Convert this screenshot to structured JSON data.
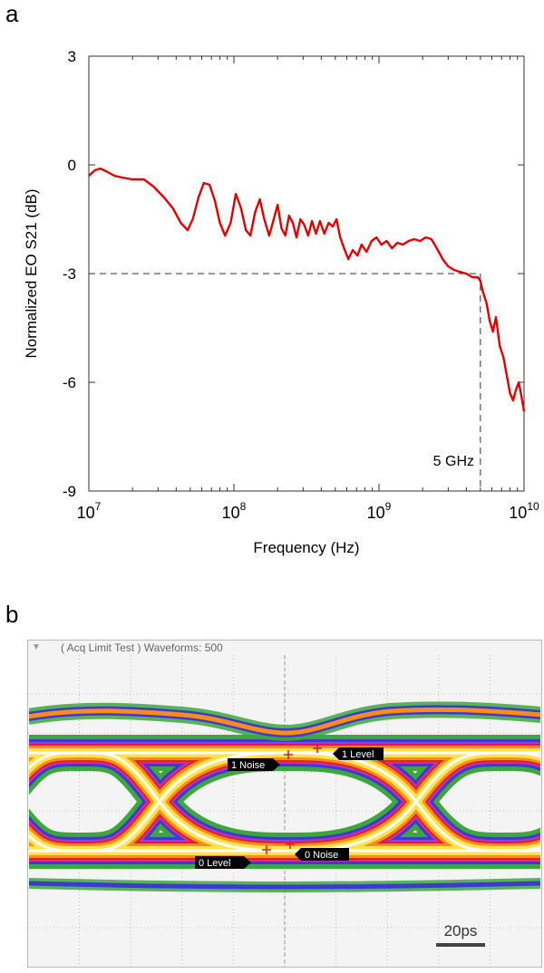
{
  "panel_a_label": "a",
  "panel_b_label": "b",
  "chart_data": {
    "type": "line",
    "title": "",
    "xlabel": "Frequency (Hz)",
    "ylabel": "Normalized EO S21 (dB)",
    "xscale": "log",
    "xlim": [
      10000000,
      10000000000
    ],
    "ylim": [
      -9,
      3
    ],
    "x_ticks": [
      {
        "base": "10",
        "exp": "7"
      },
      {
        "base": "10",
        "exp": "8"
      },
      {
        "base": "10",
        "exp": "9"
      },
      {
        "base": "10",
        "exp": "10"
      }
    ],
    "y_ticks": [
      "3",
      "0",
      "-3",
      "-6",
      "-9"
    ],
    "y_tick_values": [
      3,
      0,
      -3,
      -6,
      -9
    ],
    "grid": false,
    "line_color": "#e00000",
    "reference_lines": {
      "y": -3,
      "x": 5000000000
    },
    "annotation": "5 GHz",
    "series": [
      {
        "x": [
          10000000,
          11000000,
          12000000,
          13500000,
          15000000,
          17000000,
          20000000,
          24000000,
          28000000,
          33000000,
          38000000,
          43000000,
          48000000,
          52000000,
          57000000,
          62000000,
          68000000,
          74000000,
          80000000,
          87000000,
          95000000,
          103000000,
          112000000,
          121000000,
          130000000,
          140000000,
          151000000,
          162000000,
          175000000,
          188000000,
          200000000,
          213000000,
          226000000,
          240000000,
          255000000,
          270000000,
          287000000,
          305000000,
          325000000,
          345000000,
          368000000,
          392000000,
          420000000,
          450000000,
          480000000,
          510000000,
          540000000,
          575000000,
          615000000,
          660000000,
          710000000,
          760000000,
          820000000,
          890000000,
          960000000,
          1040000000,
          1130000000,
          1230000000,
          1340000000,
          1460000000,
          1600000000,
          1750000000,
          1920000000,
          2100000000,
          2300000000,
          2500000000,
          2750000000,
          3000000000,
          3300000000,
          3600000000,
          4000000000,
          4400000000,
          4800000000,
          5000000000,
          5200000000,
          5500000000,
          5800000000,
          6100000000,
          6400000000,
          6800000000,
          7200000000,
          7600000000,
          8000000000,
          8400000000,
          8800000000,
          9200000000,
          9600000000,
          10000000000
        ],
        "values": [
          -0.3,
          -0.15,
          -0.1,
          -0.2,
          -0.3,
          -0.35,
          -0.4,
          -0.4,
          -0.6,
          -0.9,
          -1.2,
          -1.6,
          -1.8,
          -1.5,
          -0.9,
          -0.5,
          -0.55,
          -1.0,
          -1.6,
          -1.95,
          -1.6,
          -0.8,
          -1.2,
          -1.8,
          -1.95,
          -1.3,
          -0.95,
          -1.5,
          -1.95,
          -1.5,
          -1.1,
          -1.75,
          -1.95,
          -1.4,
          -1.6,
          -2.0,
          -1.5,
          -1.65,
          -1.95,
          -1.55,
          -1.9,
          -1.55,
          -1.9,
          -1.6,
          -1.7,
          -1.5,
          -2.0,
          -2.3,
          -2.6,
          -2.35,
          -2.5,
          -2.2,
          -2.4,
          -2.1,
          -2.0,
          -2.2,
          -2.1,
          -2.3,
          -2.15,
          -2.2,
          -2.1,
          -2.05,
          -2.1,
          -2.0,
          -2.05,
          -2.3,
          -2.6,
          -2.8,
          -2.9,
          -2.95,
          -3.0,
          -3.1,
          -3.1,
          -3.2,
          -3.5,
          -3.8,
          -4.3,
          -4.6,
          -4.2,
          -5.0,
          -5.3,
          -5.8,
          -6.3,
          -6.5,
          -6.2,
          -6.0,
          -6.4,
          -6.8
        ]
      }
    ]
  },
  "eye_diagram": {
    "header": "( Acq Limit Test )  Waveforms: 500",
    "labels": {
      "one_noise": "1 Noise",
      "one_level": "1 Level",
      "zero_level": "0 Level",
      "zero_noise": "0 Noise",
      "scale": "20ps"
    },
    "colors": {
      "background": "#f4f4f4",
      "grid": "#b0b0b0",
      "outer": "#3da63d",
      "blue": "#3b3bd0",
      "magenta": "#c030c0",
      "red": "#e02020",
      "orange": "#ff8c1a",
      "yellow": "#ffe34a",
      "core": "#ffffff",
      "marker": "#d02020",
      "scale_bar": "#444444"
    }
  }
}
